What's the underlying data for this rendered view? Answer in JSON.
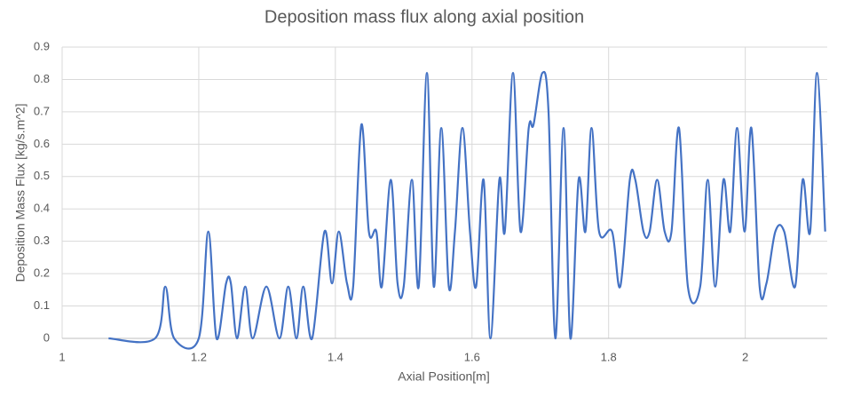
{
  "chart_data": {
    "type": "line",
    "title": "Deposition mass flux along axial position",
    "x_label": "Axial Position[m]",
    "y_label": "Deposition Mass Flux [kg/s.m^2]",
    "xlim": [
      1,
      2.12
    ],
    "xticks": [
      1,
      1.2,
      1.4,
      1.6,
      1.8,
      2
    ],
    "ylim": [
      0,
      0.9
    ],
    "yticks": [
      0,
      0.1,
      0.2,
      0.3,
      0.4,
      0.5,
      0.6,
      0.7,
      0.8,
      0.9
    ],
    "grid": true,
    "smooth": true,
    "x": [
      1.068,
      1.136,
      1.151,
      1.164,
      1.2,
      1.214,
      1.226,
      1.24,
      1.247,
      1.256,
      1.268,
      1.279,
      1.299,
      1.318,
      1.331,
      1.343,
      1.353,
      1.366,
      1.384,
      1.395,
      1.405,
      1.417,
      1.426,
      1.438,
      1.449,
      1.46,
      1.468,
      1.481,
      1.491,
      1.5,
      1.512,
      1.522,
      1.534,
      1.544,
      1.555,
      1.566,
      1.575,
      1.586,
      1.597,
      1.606,
      1.617,
      1.627,
      1.64,
      1.648,
      1.66,
      1.671,
      1.683,
      1.69,
      1.703,
      1.712,
      1.722,
      1.734,
      1.744,
      1.756,
      1.766,
      1.775,
      1.786,
      1.805,
      1.817,
      1.831,
      1.839,
      1.851,
      1.86,
      1.871,
      1.882,
      1.892,
      1.903,
      1.916,
      1.934,
      1.945,
      1.956,
      1.968,
      1.978,
      1.988,
      1.999,
      2.009,
      2.021,
      2.031,
      2.044,
      2.057,
      2.073,
      2.084,
      2.095,
      2.105,
      2.117
    ],
    "series": [
      {
        "name": "Deposition mass flux",
        "color": "#4472c4",
        "values": [
          0,
          0,
          0.16,
          0,
          0,
          0.33,
          0,
          0.17,
          0.17,
          0,
          0.16,
          0,
          0.16,
          0,
          0.16,
          0,
          0.16,
          0,
          0.33,
          0.17,
          0.33,
          0.17,
          0.16,
          0.66,
          0.33,
          0.33,
          0.16,
          0.49,
          0.17,
          0.16,
          0.49,
          0.16,
          0.82,
          0.16,
          0.65,
          0.16,
          0.33,
          0.65,
          0.33,
          0.16,
          0.49,
          0,
          0.49,
          0.33,
          0.82,
          0.33,
          0.65,
          0.66,
          0.82,
          0.7,
          0,
          0.65,
          0,
          0.49,
          0.33,
          0.65,
          0.33,
          0.33,
          0.16,
          0.49,
          0.49,
          0.33,
          0.33,
          0.49,
          0.33,
          0.33,
          0.65,
          0.16,
          0.16,
          0.49,
          0.16,
          0.49,
          0.33,
          0.65,
          0.33,
          0.65,
          0.16,
          0.17,
          0.33,
          0.33,
          0.16,
          0.49,
          0.33,
          0.82,
          0.33
        ]
      }
    ]
  }
}
